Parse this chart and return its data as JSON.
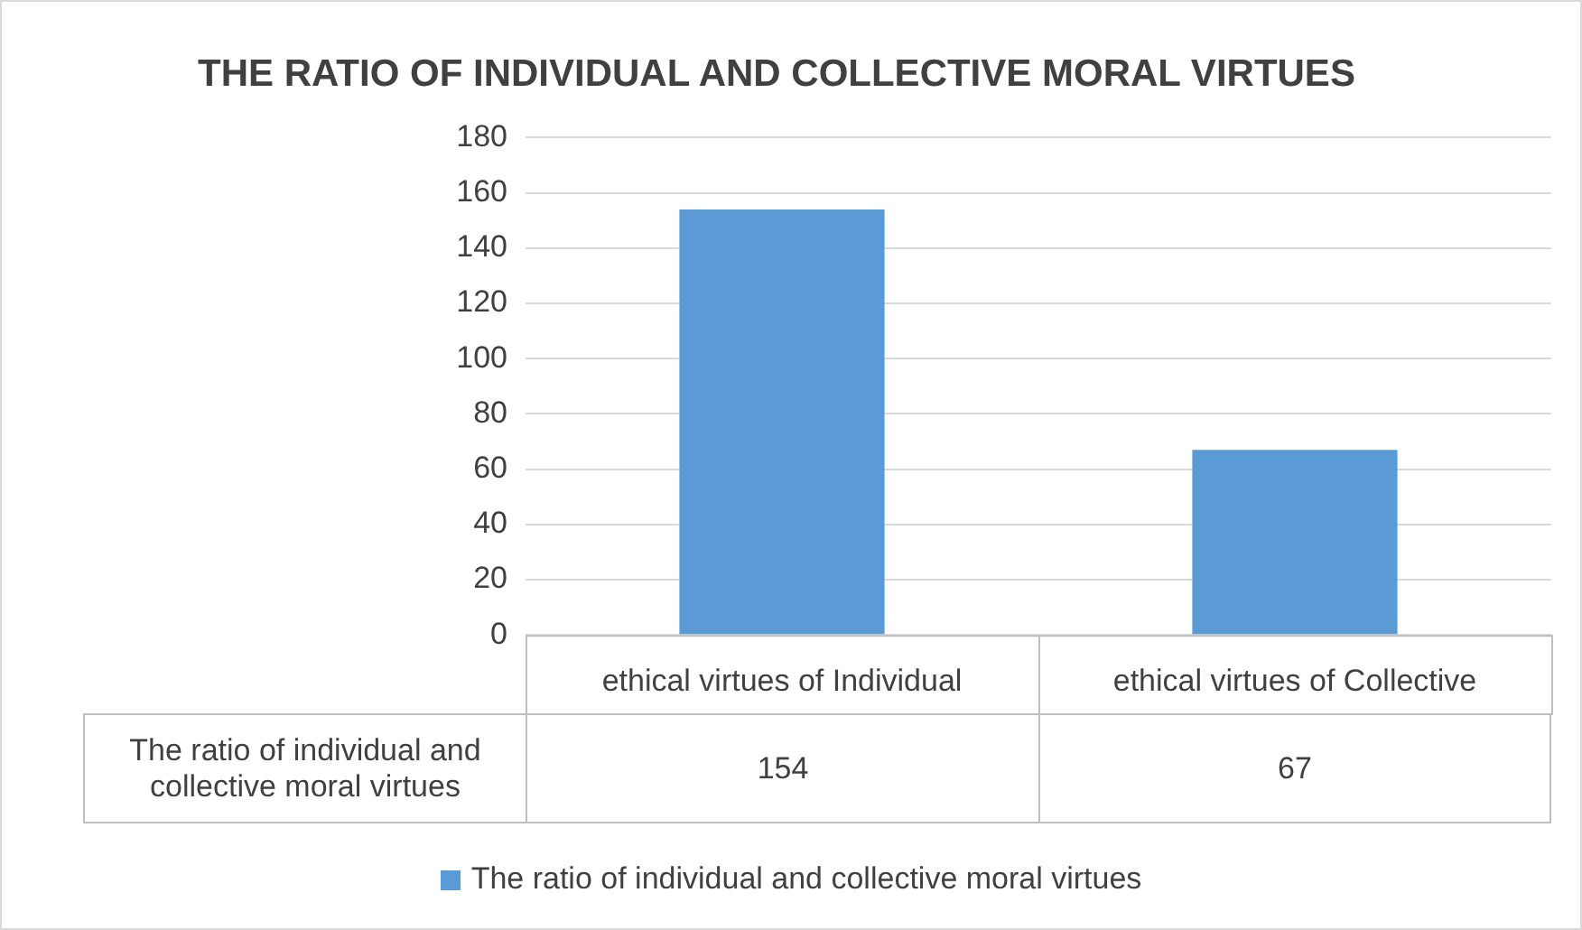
{
  "chart_data": {
    "type": "bar",
    "title": "THE RATIO OF INDIVIDUAL AND COLLECTIVE MORAL VIRTUES",
    "categories": [
      "ethical virtues of Individual",
      "ethical virtues of Collective"
    ],
    "series": [
      {
        "name": "The ratio of individual and collective moral virtues",
        "color": "#5b9bd5",
        "values": [
          154,
          67
        ]
      }
    ],
    "ylim": [
      0,
      180
    ],
    "yticks": [
      0,
      20,
      40,
      60,
      80,
      100,
      120,
      140,
      160,
      180
    ],
    "grid": "y",
    "legend": "bottom",
    "data_labels": true
  }
}
